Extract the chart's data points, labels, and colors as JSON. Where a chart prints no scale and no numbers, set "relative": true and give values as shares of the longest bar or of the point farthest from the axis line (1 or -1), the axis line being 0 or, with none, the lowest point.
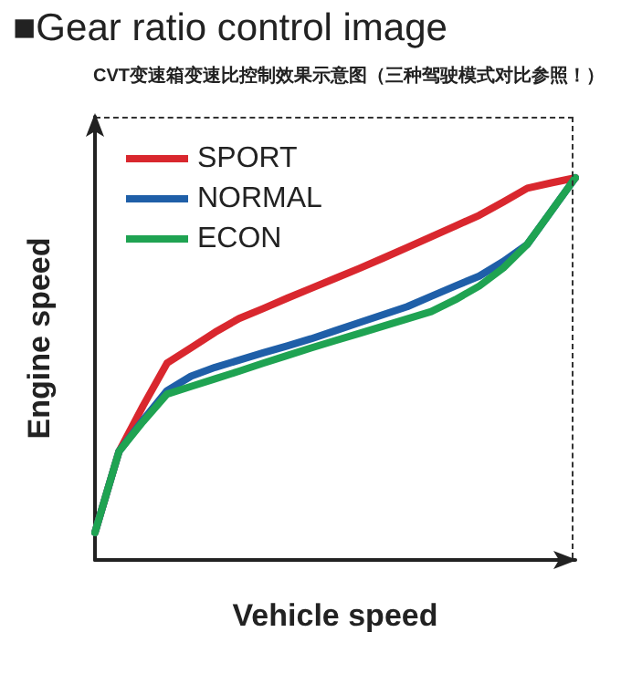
{
  "chart_data": {
    "type": "line",
    "title": "■Gear ratio control image",
    "subtitle": "CVT变速箱变速比控制效果示意图（三种驾驶模式对比参照！）",
    "xlabel": "Vehicle speed",
    "ylabel": "Engine speed",
    "relative": true,
    "grid": false,
    "legend": "top left",
    "marker": "none",
    "line_style": "solid",
    "categories": [
      null,
      null,
      null,
      null,
      null,
      null,
      null,
      null,
      null,
      null,
      null,
      null,
      null,
      null,
      null,
      null,
      null,
      null,
      null,
      null,
      null
    ],
    "series": [
      {
        "name": "SPORT",
        "color": "#d9272e",
        "values": [
          0.072,
          0.284,
          0.403,
          0.515,
          0.555,
          0.596,
          0.632,
          0.658,
          0.685,
          0.711,
          0.737,
          0.763,
          0.79,
          0.818,
          0.846,
          0.874,
          0.902,
          0.937,
          0.973,
          0.987,
          1
        ]
      },
      {
        "name": "NORMAL",
        "color": "#1f5fa8",
        "values": [
          0.072,
          0.284,
          0.366,
          0.443,
          0.481,
          0.504,
          0.523,
          0.542,
          0.56,
          0.579,
          0.6,
          0.621,
          0.642,
          0.663,
          0.69,
          0.717,
          0.743,
          0.781,
          0.826,
          0.913,
          1
        ]
      },
      {
        "name": "ECON",
        "color": "#1fa352",
        "values": [
          0.072,
          0.284,
          0.362,
          0.434,
          0.454,
          0.474,
          0.494,
          0.515,
          0.535,
          0.555,
          0.574,
          0.593,
          0.612,
          0.631,
          0.65,
          0.681,
          0.717,
          0.764,
          0.826,
          0.913,
          1
        ]
      }
    ]
  }
}
